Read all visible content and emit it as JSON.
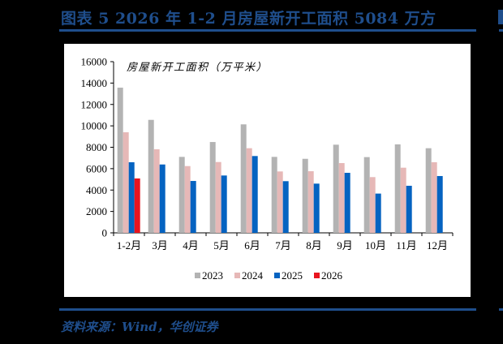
{
  "header": {
    "title": "图表 5   2026 年 1-2 月房屋新开工面积 5084 万方"
  },
  "footer": {
    "source": "资料来源：Wind，华创证券"
  },
  "colors": {
    "2023": "#b3b3b3",
    "2024": "#e6b8b7",
    "2025": "#0563c1",
    "2026": "#e8141e",
    "accent": "#1f4e8c"
  },
  "chart_data": {
    "type": "bar",
    "title": "房屋新开工面积（万平米）",
    "xlabel": "",
    "ylabel": "",
    "ylim": [
      0,
      16000
    ],
    "yticks": [
      0,
      2000,
      4000,
      6000,
      8000,
      10000,
      12000,
      14000,
      16000
    ],
    "grid": false,
    "legend_position": "bottom",
    "categories": [
      "1-2月",
      "3月",
      "4月",
      "5月",
      "6月",
      "7月",
      "8月",
      "9月",
      "10月",
      "11月",
      "12月"
    ],
    "series": [
      {
        "name": "2023",
        "values": [
          13570,
          10560,
          7100,
          8490,
          10140,
          7100,
          6920,
          8240,
          7080,
          8270,
          7910
        ]
      },
      {
        "name": "2024",
        "values": [
          9400,
          7810,
          6240,
          6620,
          7910,
          5740,
          5760,
          6520,
          5210,
          6090,
          6600
        ]
      },
      {
        "name": "2025",
        "values": [
          6600,
          6390,
          4850,
          5360,
          7180,
          4830,
          4600,
          5610,
          3670,
          4400,
          5310
        ]
      },
      {
        "name": "2026",
        "values": [
          5084,
          null,
          null,
          null,
          null,
          null,
          null,
          null,
          null,
          null,
          null
        ]
      }
    ]
  }
}
